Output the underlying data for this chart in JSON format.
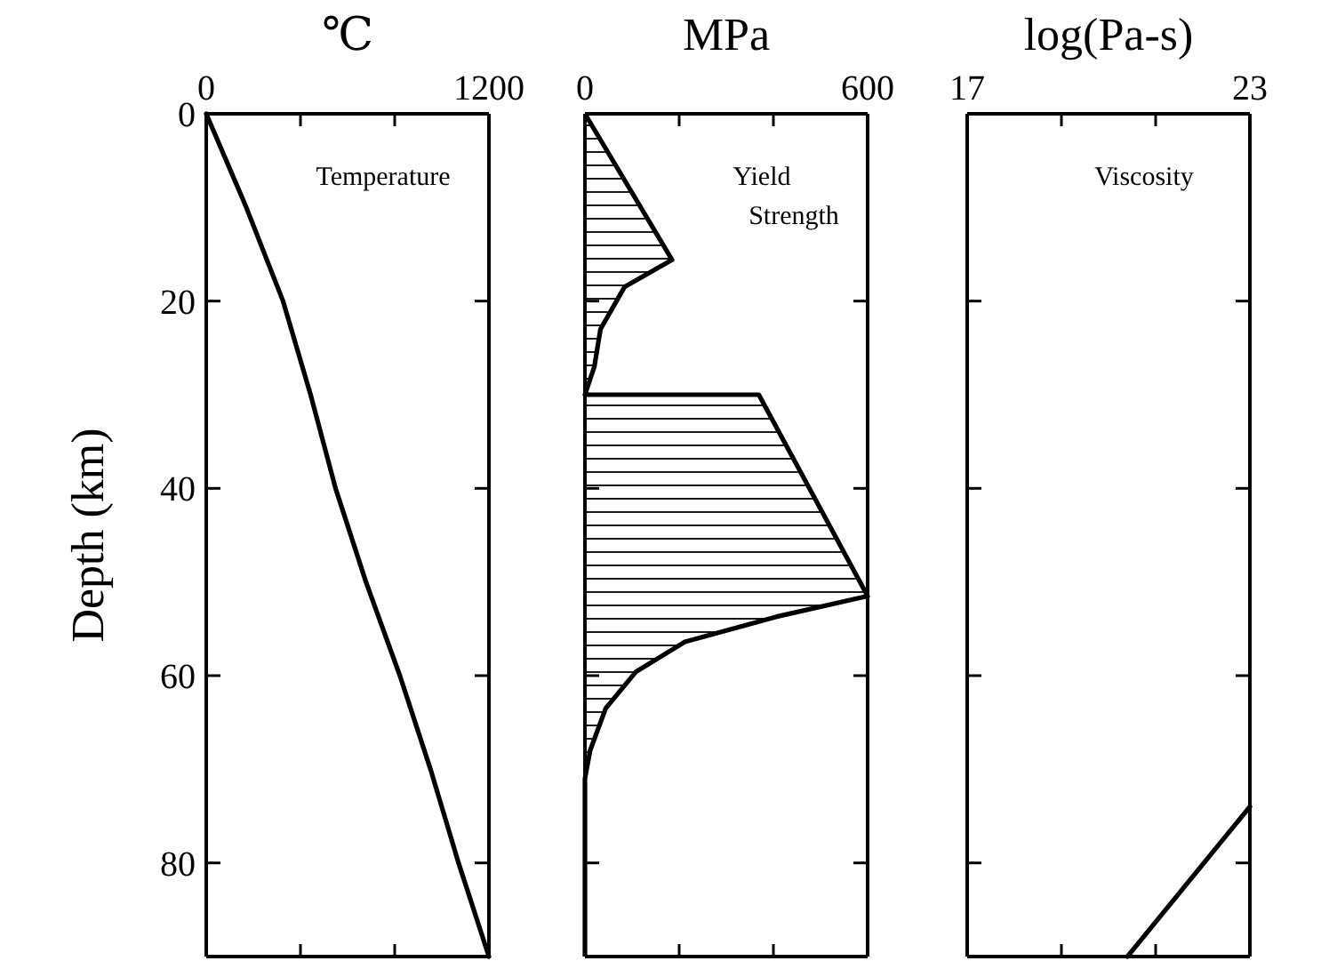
{
  "chart_data": [
    {
      "type": "line",
      "xlabel": "℃",
      "ylabel": "Depth (km)",
      "annotations": [
        "Temperature"
      ],
      "xlim": [
        0,
        1200
      ],
      "xticks": [
        0,
        {
          "value": 400,
          "label": null
        },
        {
          "value": 800,
          "label": null
        },
        1200
      ],
      "ylim": [
        90,
        0
      ],
      "yticks": [
        0,
        20,
        40,
        60,
        80
      ],
      "series": [
        {
          "color": "#000000",
          "x": [
            0,
            170,
            326,
            443,
            549,
            678,
            822,
            952,
            1071,
            1200
          ],
          "values": [
            0,
            10,
            20,
            30,
            40,
            50,
            60,
            70,
            80,
            90
          ]
        }
      ]
    },
    {
      "type": "area",
      "xlabel": "MPa",
      "annotations": [
        "Yield\nStrength"
      ],
      "xlim": [
        0,
        600
      ],
      "xticks": [
        0,
        {
          "value": 200,
          "label": null
        },
        {
          "value": 400,
          "label": null
        },
        600
      ],
      "ylim": [
        90,
        0
      ],
      "yticks": [
        0,
        20,
        40,
        60,
        80
      ],
      "tick_labels": "x",
      "series": [
        {
          "color": "#000000",
          "x": [
            0,
            185,
            84,
            33,
            20,
            0,
            369,
            600,
            407,
            212,
            108,
            44,
            11,
            0,
            0
          ],
          "values": [
            0,
            15.6,
            18.5,
            23,
            27,
            30,
            30,
            51.5,
            53.7,
            56.4,
            59.6,
            63.5,
            68,
            71,
            90
          ]
        }
      ]
    },
    {
      "type": "line",
      "xlabel": "log(Pa-s)",
      "annotations": [
        "Viscosity"
      ],
      "xlim": [
        17,
        23
      ],
      "xticks": [
        17,
        {
          "value": 19,
          "label": null
        },
        {
          "value": 21,
          "label": null
        },
        23
      ],
      "ylim": [
        90,
        0
      ],
      "yticks": [
        0,
        20,
        40,
        60,
        80
      ],
      "tick_labels": "x",
      "series": [
        {
          "color": "#000000",
          "x": [
            20.4,
            23
          ],
          "values": [
            90,
            74
          ]
        }
      ]
    }
  ]
}
